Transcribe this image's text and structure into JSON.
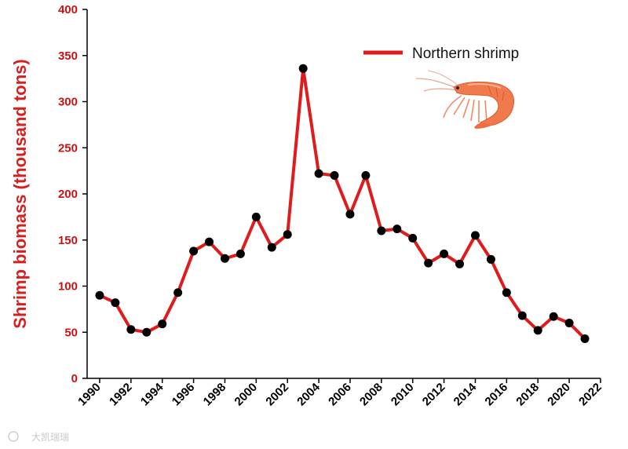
{
  "chart_data": {
    "type": "line",
    "title": "",
    "xlabel": "",
    "ylabel": "Shrimp biomass (thousand tons)",
    "xlim": [
      1989.2,
      2022
    ],
    "ylim": [
      0,
      400
    ],
    "x_ticks": [
      1990,
      1992,
      1994,
      1996,
      1998,
      2000,
      2002,
      2004,
      2006,
      2008,
      2010,
      2012,
      2014,
      2016,
      2018,
      2020,
      2022
    ],
    "y_ticks": [
      0,
      50,
      100,
      150,
      200,
      250,
      300,
      350,
      400
    ],
    "grid": false,
    "legend_position": "top-right",
    "series": [
      {
        "name": "Northern shrimp",
        "color": "#e01b1b",
        "marker_color": "#000000",
        "x": [
          1990,
          1991,
          1992,
          1993,
          1994,
          1995,
          1996,
          1997,
          1998,
          1999,
          2000,
          2001,
          2002,
          2003,
          2004,
          2005,
          2006,
          2007,
          2008,
          2009,
          2010,
          2011,
          2012,
          2013,
          2014,
          2015,
          2016,
          2017,
          2018,
          2019,
          2020,
          2021
        ],
        "y": [
          90,
          82,
          53,
          50,
          59,
          93,
          138,
          148,
          130,
          135,
          175,
          142,
          156,
          336,
          222,
          220,
          178,
          220,
          160,
          162,
          152,
          125,
          135,
          124,
          155,
          129,
          93,
          68,
          52,
          67,
          60,
          43
        ]
      }
    ]
  },
  "decor": {
    "legend_icon": "shrimp-photo-icon",
    "watermark_icon": "watermark-logo-icon",
    "watermark_text": "大凯瑞瑞"
  }
}
